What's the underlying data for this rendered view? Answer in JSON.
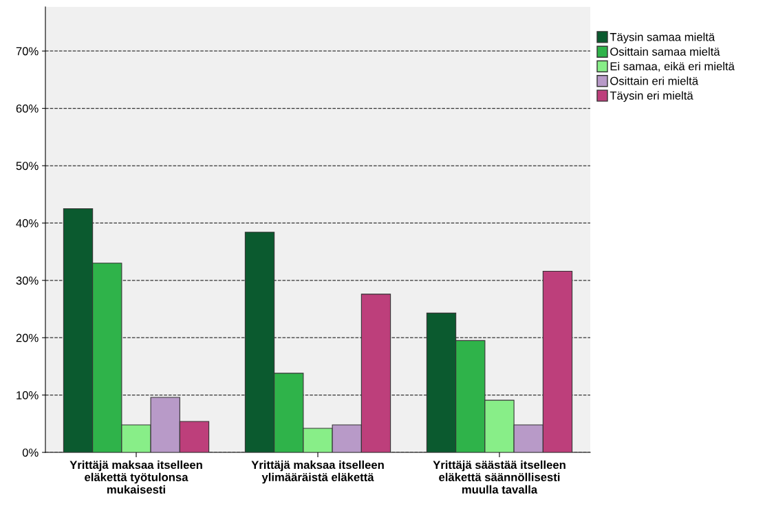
{
  "chart_data": {
    "type": "bar",
    "categories": [
      "Yrittäjä maksaa itselleen\neläkettä työtulonsa\nmukaisesti",
      "Yrittäjä maksaa itselleen\nylimääräistä eläkettä",
      "Yrittäjä säästää itselleen\neläkettä säännöllisesti\nmuulla tavalla"
    ],
    "series": [
      {
        "name": "Täysin samaa mieltä",
        "color": "#0b5a2f",
        "values": [
          42.5,
          38.4,
          24.3
        ]
      },
      {
        "name": "Osittain samaa mieltä",
        "color": "#2fb34a",
        "values": [
          33.0,
          13.8,
          19.5
        ]
      },
      {
        "name": "Ei samaa, eikä eri mieltä",
        "color": "#88ee88",
        "values": [
          4.8,
          4.2,
          9.1
        ]
      },
      {
        "name": "Osittain eri mieltä",
        "color": "#b89ac8",
        "values": [
          9.6,
          4.8,
          4.8
        ]
      },
      {
        "name": "Täysin eri mieltä",
        "color": "#bd3f7b",
        "values": [
          5.4,
          27.6,
          31.6
        ]
      }
    ],
    "ylim": [
      0,
      77.7
    ],
    "yticks": [
      {
        "value": 0,
        "label": "0%"
      },
      {
        "value": 10,
        "label": "10%"
      },
      {
        "value": 20,
        "label": "20%"
      },
      {
        "value": 30,
        "label": "30%"
      },
      {
        "value": 40,
        "label": "40%"
      },
      {
        "value": 50,
        "label": "50%"
      },
      {
        "value": 60,
        "label": "60%"
      },
      {
        "value": 70,
        "label": "70%"
      }
    ],
    "grid": "y",
    "legend": "top right"
  }
}
